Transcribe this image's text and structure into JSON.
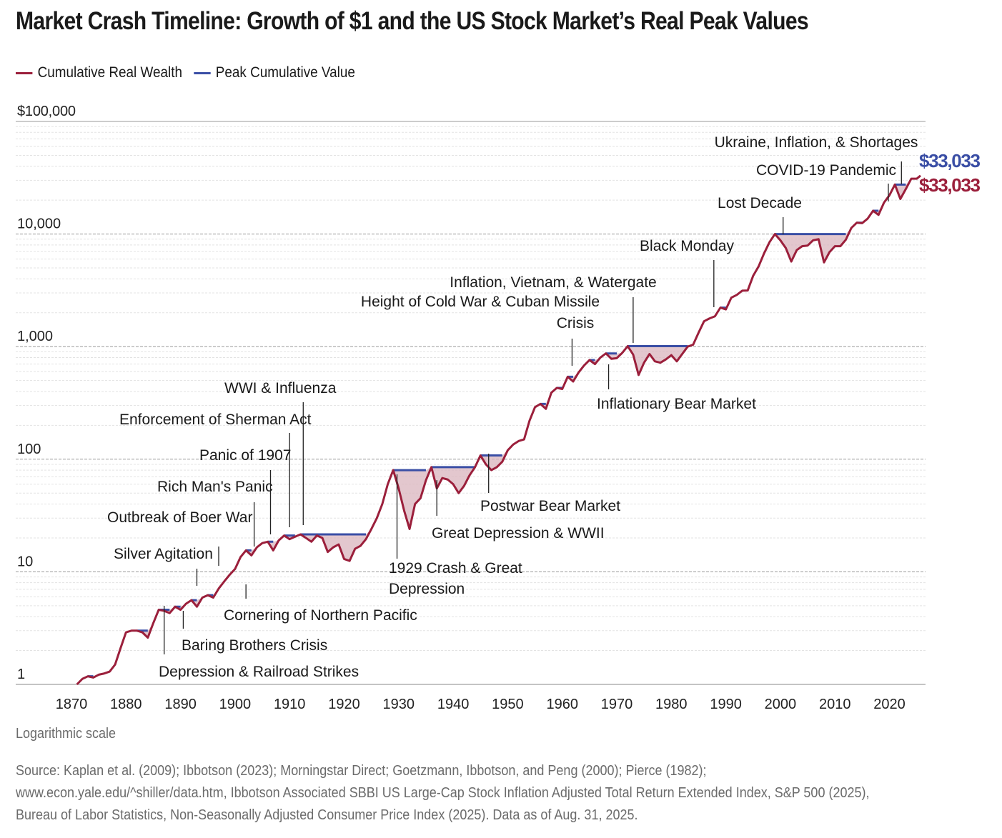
{
  "title": "Market Crash Timeline: Growth of $1 and the US Stock Market’s Real Peak Values",
  "legend": {
    "wealth": "Cumulative Real Wealth",
    "peak": "Peak Cumulative Value"
  },
  "colors": {
    "wealth": "#9b1f3b",
    "peak": "#3a4ea5",
    "drawdown_fill": "#d9b4bd"
  },
  "scale_note": "Logarithmic scale",
  "source_lines": [
    "Source: Kaplan et al. (2009); Ibbotson (2023); Morningstar Direct; Goetzmann, Ibbotson, and Peng (2000); Pierce (1982);",
    "www.econ.yale.edu/^shiller/data.htm, Ibbotson Associated SBBI US Large-Cap Stock Inflation Adjusted Total Return Extended Index, S&P 500 (2025),",
    "Bureau of Labor Statistics, Non-Seasonally Adjusted Consumer Price Index (2025). Data as of Aug. 31, 2025."
  ],
  "chart_data": {
    "type": "line",
    "yscale": "log",
    "ylim": [
      1,
      100000
    ],
    "xlim": [
      1870,
      2025.7
    ],
    "y_ticks": [
      {
        "value": 1,
        "label": "1"
      },
      {
        "value": 10,
        "label": "10"
      },
      {
        "value": 100,
        "label": "100"
      },
      {
        "value": 1000,
        "label": "1,000"
      },
      {
        "value": 10000,
        "label": "10,000"
      },
      {
        "value": 100000,
        "label": "$100,000"
      }
    ],
    "x_ticks": [
      1870,
      1880,
      1890,
      1900,
      1910,
      1920,
      1930,
      1940,
      1950,
      1960,
      1970,
      1980,
      1990,
      2000,
      2010,
      2020
    ],
    "end_labels": {
      "peak": "$33,033",
      "wealth": "$33,033"
    },
    "series": [
      {
        "name": "Cumulative Real Wealth",
        "x": [
          1871,
          1872,
          1873,
          1874,
          1875,
          1876,
          1877,
          1878,
          1879,
          1880,
          1881,
          1882,
          1883,
          1884,
          1885,
          1886,
          1887,
          1888,
          1889,
          1890,
          1891,
          1892,
          1893,
          1894,
          1895,
          1896,
          1897,
          1898,
          1899,
          1900,
          1901,
          1902,
          1903,
          1904,
          1905,
          1906,
          1907,
          1908,
          1909,
          1910,
          1911,
          1912,
          1913,
          1914,
          1915,
          1916,
          1917,
          1918,
          1919,
          1920,
          1921,
          1922,
          1923,
          1924,
          1925,
          1926,
          1927,
          1928,
          1929,
          1930,
          1931,
          1932,
          1933,
          1934,
          1935,
          1936,
          1937,
          1938,
          1939,
          1940,
          1941,
          1942,
          1943,
          1944,
          1945,
          1946,
          1947,
          1948,
          1949,
          1950,
          1951,
          1952,
          1953,
          1954,
          1955,
          1956,
          1957,
          1958,
          1959,
          1960,
          1961,
          1962,
          1963,
          1964,
          1965,
          1966,
          1967,
          1968,
          1969,
          1970,
          1971,
          1972,
          1973,
          1974,
          1975,
          1976,
          1977,
          1978,
          1979,
          1980,
          1981,
          1982,
          1983,
          1984,
          1985,
          1986,
          1987,
          1988,
          1989,
          1990,
          1991,
          1992,
          1993,
          1994,
          1995,
          1996,
          1997,
          1998,
          1999,
          2000,
          2001,
          2002,
          2003,
          2004,
          2005,
          2006,
          2007,
          2008,
          2009,
          2010,
          2011,
          2012,
          2013,
          2014,
          2015,
          2016,
          2017,
          2018,
          2019,
          2020,
          2021,
          2022,
          2023,
          2024,
          2025,
          2025.7
        ],
        "values": [
          1.0,
          1.12,
          1.18,
          1.15,
          1.22,
          1.25,
          1.3,
          1.5,
          2.1,
          2.9,
          3.0,
          3.0,
          2.9,
          2.6,
          3.5,
          4.6,
          4.5,
          4.3,
          4.9,
          4.6,
          5.2,
          5.6,
          4.9,
          5.9,
          6.2,
          5.9,
          7.1,
          8.2,
          9.4,
          10.6,
          13.5,
          15.5,
          14.0,
          16.5,
          18.0,
          18.5,
          15.5,
          19.0,
          21.0,
          19.5,
          20.5,
          21.5,
          20.0,
          18.5,
          21.0,
          20.0,
          15.0,
          16.5,
          17.5,
          13.0,
          12.5,
          16.0,
          17.0,
          19.5,
          24.0,
          30.0,
          40.0,
          60.0,
          80.0,
          55.0,
          35.0,
          24.0,
          40.0,
          45.0,
          65.0,
          85.0,
          55.0,
          68.0,
          66.0,
          60.0,
          50.0,
          58.0,
          72.0,
          85.0,
          108.0,
          90.0,
          80.0,
          85.0,
          95.0,
          120.0,
          135.0,
          145.0,
          150.0,
          220.0,
          290.0,
          310.0,
          280.0,
          390.0,
          430.0,
          420.0,
          540.0,
          490.0,
          590.0,
          680.0,
          760.0,
          700.0,
          800.0,
          870.0,
          780.0,
          790.0,
          880.0,
          1010.0,
          850.0,
          560.0,
          720.0,
          860.0,
          740.0,
          720.0,
          770.0,
          840.0,
          740.0,
          860.0,
          1000.0,
          1040.0,
          1330.0,
          1680.0,
          1780.0,
          1860.0,
          2220.0,
          2140.0,
          2720.0,
          2880.0,
          3140.0,
          3150.0,
          4250.0,
          5150.0,
          6720.0,
          8460.0,
          10000.0,
          8800.0,
          7500.0,
          5700.0,
          7200.0,
          7800.0,
          7900.0,
          8800.0,
          9000.0,
          5600.0,
          6900.0,
          7800.0,
          7800.0,
          8900.0,
          11300.0,
          12600.0,
          12500.0,
          13700.0,
          16100.0,
          14800.0,
          19000.0,
          22100.0,
          27500.0,
          20500.0,
          25100.0,
          31000.0,
          31000.0,
          33033.0
        ]
      },
      {
        "name": "Peak Cumulative Value",
        "note": "running maximum of Cumulative Real Wealth"
      }
    ],
    "annotations": [
      {
        "label": "Depression & Railroad Strikes",
        "x": 1887
      },
      {
        "label": "Baring Brothers Crisis",
        "x": 1890.5
      },
      {
        "label": "Silver Agitation",
        "x": 1893
      },
      {
        "label": "Outbreak of Boer War",
        "x": 1897
      },
      {
        "label": "Cornering of Northern Pacific",
        "x": 1902
      },
      {
        "label": "Rich Man's Panic",
        "x": 1903.5
      },
      {
        "label": "Panic of 1907",
        "x": 1906.5
      },
      {
        "label": "Enforcement of Sherman Act",
        "x": 1910
      },
      {
        "label": "WWI & Influenza",
        "x": 1912.5
      },
      {
        "label": "1929 Crash & Great Depression",
        "x": 1929.7
      },
      {
        "label": "Great Depression & WWII",
        "x": 1937
      },
      {
        "label": "Postwar Bear Market",
        "x": 1946.5
      },
      {
        "label": "Height of Cold War & Cuban Missile Crisis",
        "x": 1961.8
      },
      {
        "label": "Inflationary Bear Market",
        "x": 1968.5
      },
      {
        "label": "Inflation, Vietnam, & Watergate",
        "x": 1973
      },
      {
        "label": "Black Monday",
        "x": 1987.8
      },
      {
        "label": "Lost Decade",
        "x": 2000.5
      },
      {
        "label": "COVID-19 Pandemic",
        "x": 2019.8
      },
      {
        "label": "Ukraine, Inflation, & Shortages",
        "x": 2022.2
      }
    ]
  }
}
